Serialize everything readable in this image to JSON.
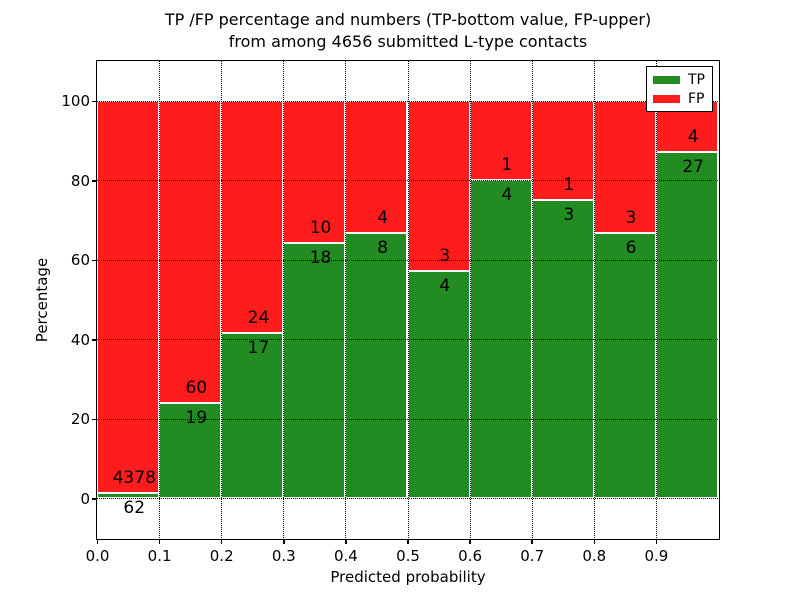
{
  "title": {
    "line1": "TP /FP percentage and numbers (TP-bottom value, FP-upper)",
    "line2": "from among 4656 submitted L-type contacts"
  },
  "axes": {
    "xlabel": "Predicted probability",
    "ylabel": "Percentage",
    "xtick_labels": [
      "0.0",
      "0.1",
      "0.2",
      "0.3",
      "0.4",
      "0.5",
      "0.6",
      "0.7",
      "0.8",
      "0.9"
    ],
    "xtick_values": [
      0.0,
      0.1,
      0.2,
      0.3,
      0.4,
      0.5,
      0.6,
      0.7,
      0.8,
      0.9
    ],
    "ytick_labels": [
      "0",
      "20",
      "40",
      "60",
      "80",
      "100"
    ],
    "ytick_values": [
      0,
      20,
      40,
      60,
      80,
      100
    ]
  },
  "legend": {
    "items": [
      {
        "label": "TP",
        "color": "#228b22"
      },
      {
        "label": "FP",
        "color": "#ff1c1c"
      }
    ]
  },
  "chart_data": {
    "type": "bar",
    "stacked": true,
    "title": "TP /FP percentage and numbers (TP-bottom value, FP-upper) from among 4656 submitted L-type contacts",
    "xlabel": "Predicted probability",
    "ylabel": "Percentage",
    "xlim": [
      0.0,
      1.0
    ],
    "ylim": [
      -10,
      110
    ],
    "grid": "dotted",
    "legend_position": "upper right",
    "total_contacts": 4656,
    "bin_width": 0.1,
    "colors": {
      "tp": "#228b22",
      "fp": "#ff1c1c",
      "edge": "#ffffff"
    },
    "bars": [
      {
        "bin_start": 0.0,
        "bin_end": 0.1,
        "tp_count": 62,
        "fp_count": 4378,
        "tp_percent": 1.4
      },
      {
        "bin_start": 0.1,
        "bin_end": 0.2,
        "tp_count": 19,
        "fp_count": 60,
        "tp_percent": 24.05
      },
      {
        "bin_start": 0.2,
        "bin_end": 0.3,
        "tp_count": 17,
        "fp_count": 24,
        "tp_percent": 41.46
      },
      {
        "bin_start": 0.3,
        "bin_end": 0.4,
        "tp_count": 18,
        "fp_count": 10,
        "tp_percent": 64.29
      },
      {
        "bin_start": 0.4,
        "bin_end": 0.5,
        "tp_count": 8,
        "fp_count": 4,
        "tp_percent": 66.67
      },
      {
        "bin_start": 0.5,
        "bin_end": 0.6,
        "tp_count": 4,
        "fp_count": 3,
        "tp_percent": 57.14
      },
      {
        "bin_start": 0.6,
        "bin_end": 0.7,
        "tp_count": 4,
        "fp_count": 1,
        "tp_percent": 80.0
      },
      {
        "bin_start": 0.7,
        "bin_end": 0.8,
        "tp_count": 3,
        "fp_count": 1,
        "tp_percent": 75.0
      },
      {
        "bin_start": 0.8,
        "bin_end": 0.9,
        "tp_count": 6,
        "fp_count": 3,
        "tp_percent": 66.67
      },
      {
        "bin_start": 0.9,
        "bin_end": 1.0,
        "tp_count": 27,
        "fp_count": 4,
        "tp_percent": 87.1
      }
    ]
  }
}
